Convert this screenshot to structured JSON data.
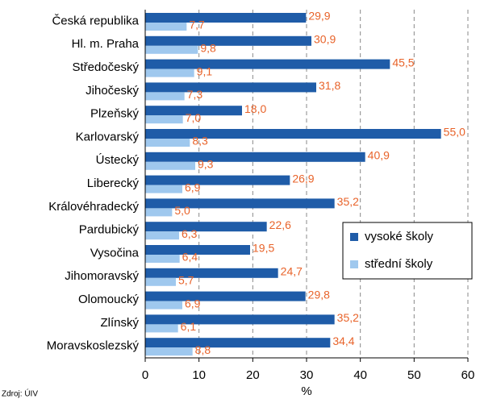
{
  "chart_data": {
    "type": "barh",
    "xlabel": "%",
    "source": "Zdroj: ÚIV",
    "categories": [
      "Česká republika",
      "Hl. m. Praha",
      "Středočeský",
      "Jihočeský",
      "Plzeňský",
      "Karlovarský",
      "Ústecký",
      "Liberecký",
      "Královéhradecký",
      "Pardubický",
      "Vysočina",
      "Jihomoravský",
      "Olomoucký",
      "Zlínský",
      "Moravskoslezský"
    ],
    "series": [
      {
        "name": "vysoké školy",
        "color": "#1f5ca8",
        "values": [
          29.9,
          30.9,
          45.5,
          31.8,
          18.0,
          55.0,
          40.9,
          26.9,
          35.2,
          22.6,
          19.5,
          24.7,
          29.8,
          35.2,
          34.4
        ],
        "value_labels": [
          "29,9",
          "30,9",
          "45,5",
          "31,8",
          "18,0",
          "55,0",
          "40,9",
          "26,9",
          "35,2",
          "22,6",
          "19,5",
          "24,7",
          "29,8",
          "35,2",
          "34,4"
        ]
      },
      {
        "name": "střední školy",
        "color": "#9fc8ee",
        "values": [
          7.7,
          9.8,
          9.1,
          7.3,
          7.0,
          8.3,
          9.3,
          6.9,
          5.0,
          6.3,
          6.4,
          5.7,
          6.9,
          6.1,
          8.8
        ],
        "value_labels": [
          "7,7",
          "9,8",
          "9,1",
          "7,3",
          "7,0",
          "8,3",
          "9,3",
          "6,9",
          "5,0",
          "6,3",
          "6,4",
          "5,7",
          "6,9",
          "6,1",
          "8,8"
        ]
      }
    ],
    "xlim": [
      0,
      60
    ],
    "xticks": [
      0,
      10,
      20,
      30,
      40,
      50,
      60
    ],
    "grid": true,
    "legend_position": "right"
  }
}
